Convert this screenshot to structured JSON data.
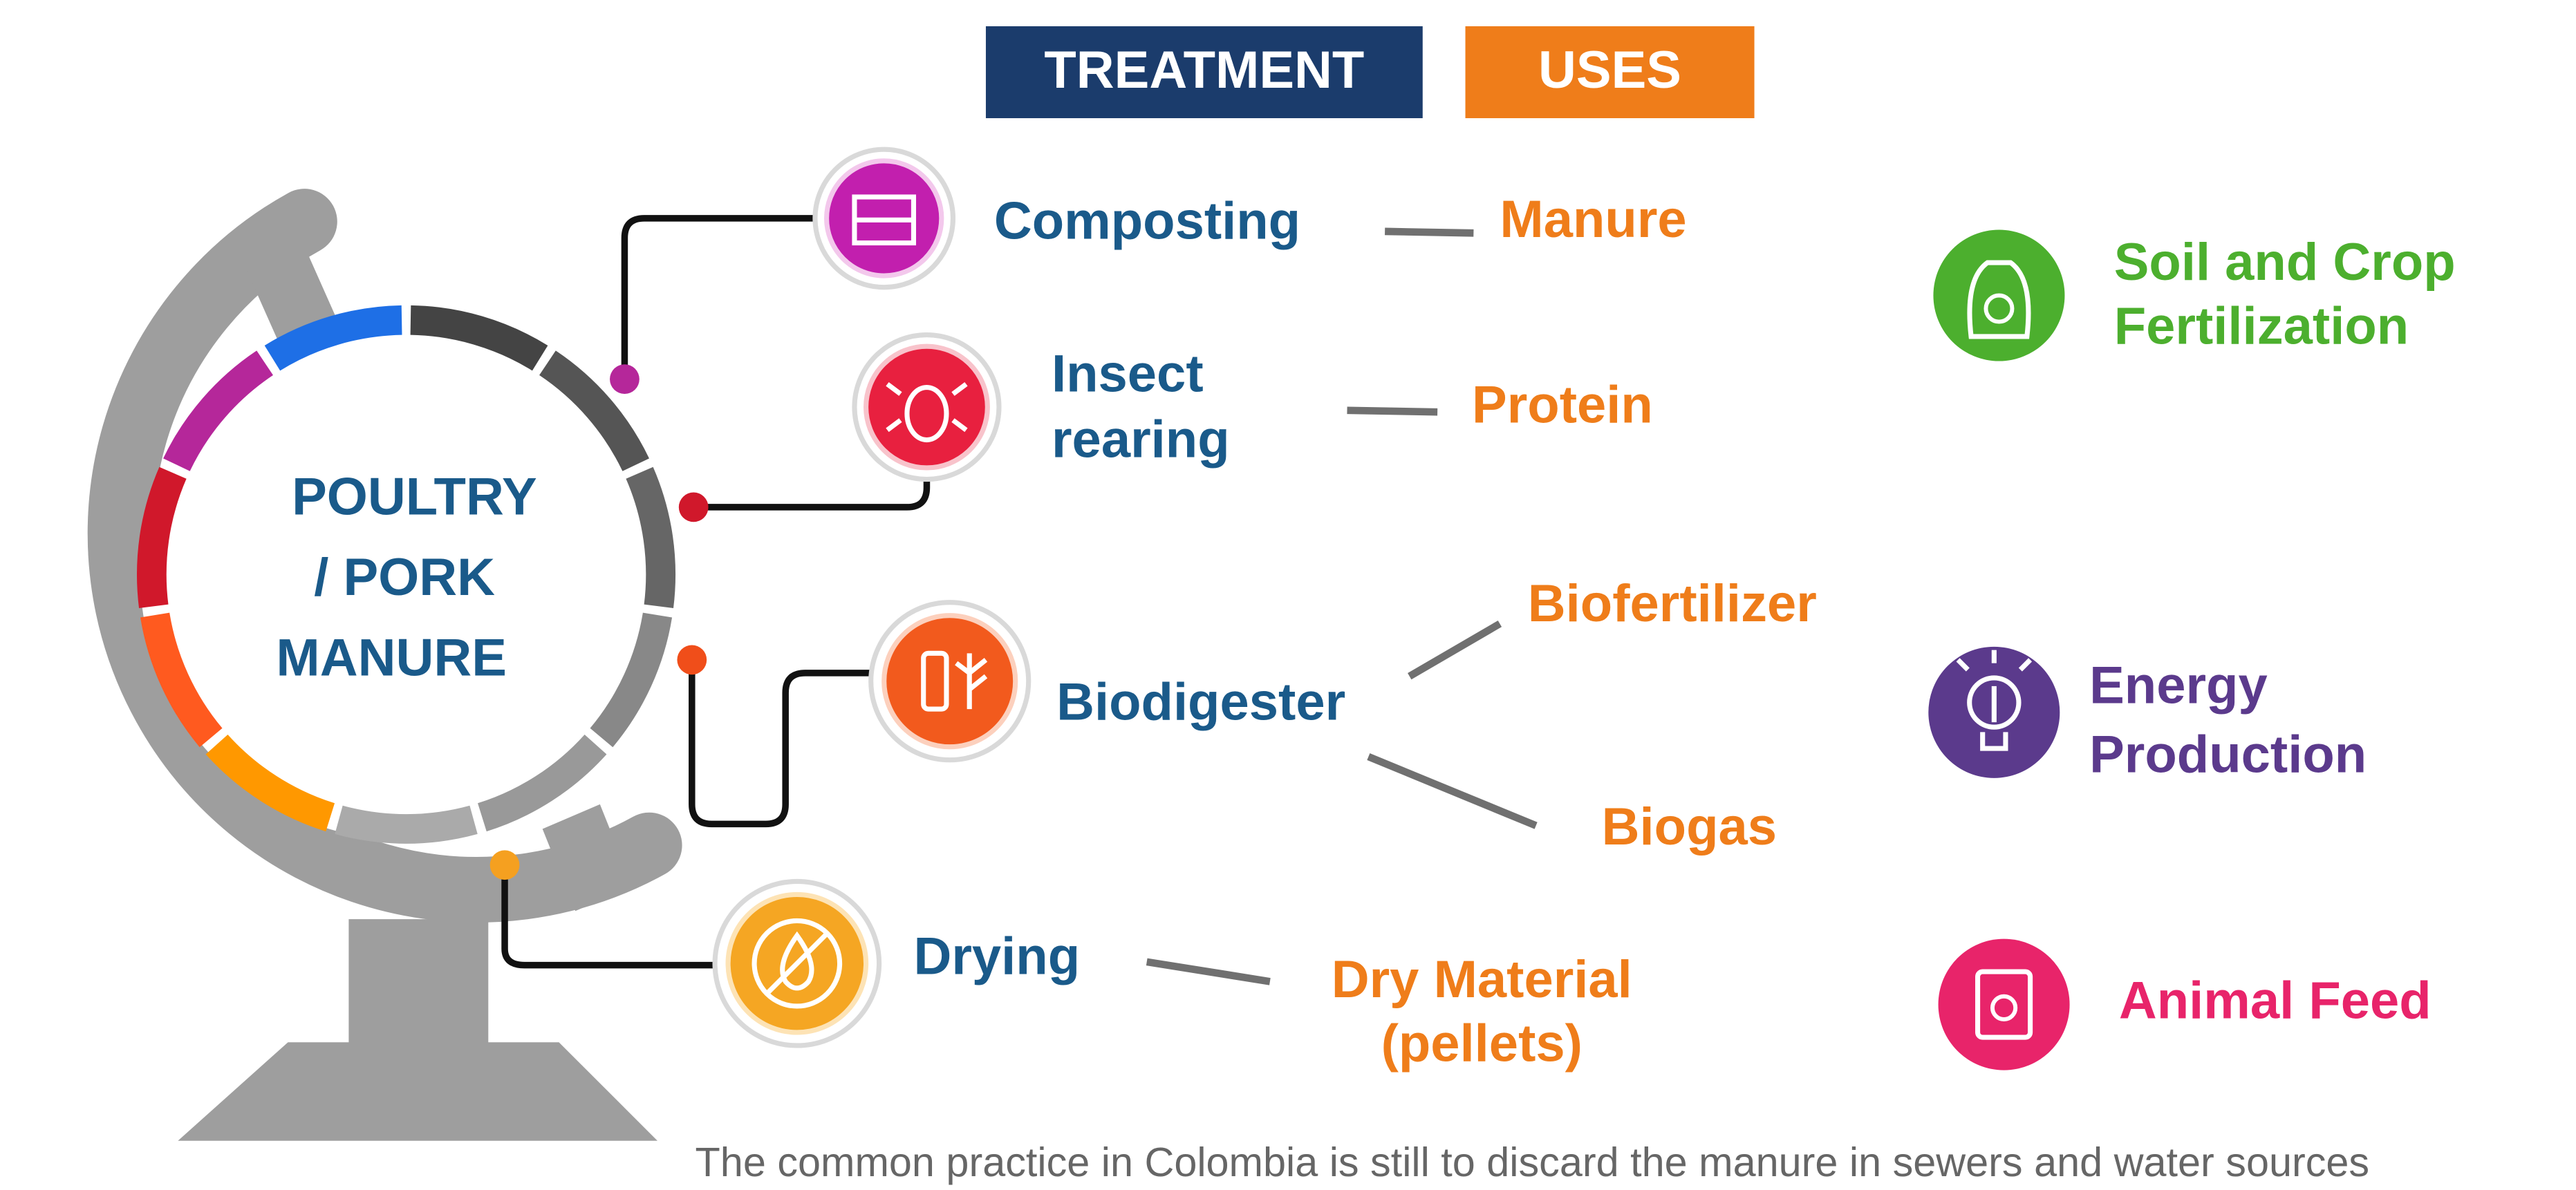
{
  "legend": {
    "treatment": "TREATMENT",
    "uses": "USES"
  },
  "center": {
    "lines": [
      "POULTRY",
      "/ PORK",
      "MANURE"
    ]
  },
  "treatments": [
    {
      "label": [
        "Composting"
      ],
      "uses": [
        {
          "label": [
            "Manure"
          ]
        }
      ]
    },
    {
      "label": [
        "Insect",
        "rearing"
      ],
      "uses": [
        {
          "label": [
            "Protein"
          ]
        }
      ]
    },
    {
      "label": [
        "Biodigester"
      ],
      "uses": [
        {
          "label": [
            "Biofertilizer"
          ]
        },
        {
          "label": [
            "Biogas"
          ]
        }
      ]
    },
    {
      "label": [
        "Drying"
      ],
      "uses": [
        {
          "label": [
            "Dry Material",
            "(pellets)"
          ]
        }
      ]
    }
  ],
  "outcomes": [
    {
      "label": [
        "Soil and Crop",
        "Fertilization"
      ]
    },
    {
      "label": [
        "Energy",
        "Production"
      ]
    },
    {
      "label": [
        "Animal Feed"
      ]
    }
  ],
  "footer": "The common practice in Colombia is still to discard the manure in sewers and water sources"
}
